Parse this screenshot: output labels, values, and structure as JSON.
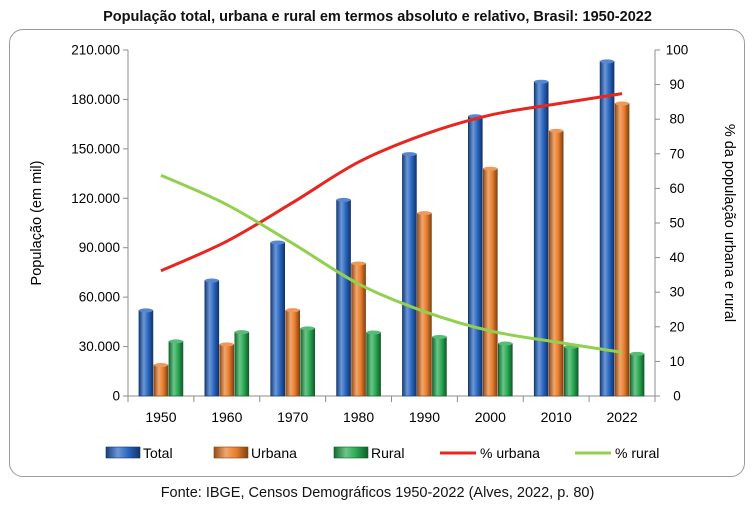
{
  "chart_data": {
    "type": "bar",
    "title": "População total, urbana e rural em termos absoluto e relativo, Brasil: 1950-2022",
    "source": "Fonte: IBGE, Censos Demográficos 1950-2022 (Alves, 2022, p. 80)",
    "categories": [
      "1950",
      "1960",
      "1970",
      "1980",
      "1990",
      "2000",
      "2010",
      "2022"
    ],
    "ylabel": "População (em mil)",
    "y2label": "% da população urbana e rural",
    "ylim": [
      0,
      210000
    ],
    "y2lim": [
      0,
      100
    ],
    "yticks": [
      "0",
      "30.000",
      "60.000",
      "90.000",
      "120.000",
      "150.000",
      "180.000",
      "210.000"
    ],
    "y2ticks": [
      "0",
      "10",
      "20",
      "30",
      "40",
      "50",
      "60",
      "70",
      "80",
      "90",
      "100"
    ],
    "series": [
      {
        "name": "Total",
        "kind": "bar",
        "color": "#1F5FBF",
        "values": [
          51944,
          70070,
          93139,
          119002,
          146825,
          169799,
          190756,
          203081
        ]
      },
      {
        "name": "Urbana",
        "kind": "bar",
        "color": "#E87722",
        "values": [
          18783,
          31303,
          52085,
          80436,
          110991,
          137954,
          160926,
          177500
        ]
      },
      {
        "name": "Rural",
        "kind": "bar",
        "color": "#1FA64A",
        "values": [
          33162,
          38767,
          41054,
          38566,
          35834,
          31845,
          29830,
          25600
        ]
      },
      {
        "name": "% urbana",
        "kind": "line",
        "color": "#E8251E",
        "values": [
          36.2,
          44.7,
          55.9,
          67.6,
          75.6,
          81.2,
          84.4,
          87.4
        ]
      },
      {
        "name": "% rural",
        "kind": "line",
        "color": "#92D050",
        "values": [
          63.8,
          55.3,
          44.1,
          32.4,
          24.4,
          18.8,
          15.6,
          12.6
        ]
      }
    ],
    "legend_position": "bottom"
  }
}
